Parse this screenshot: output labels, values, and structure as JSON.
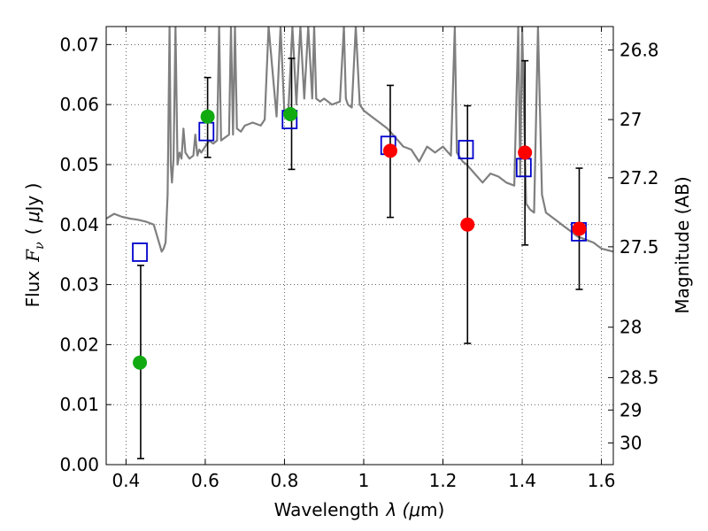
{
  "chart_data": {
    "type": "scatter",
    "xlabel": "Wavelength",
    "xlabel_symbol": "λ (",
    "xlabel_mu": "μ",
    "xlabel_unit": "m)",
    "ylabel": "Flux",
    "ylabel_symbol": "F",
    "ylabel_sub": "ν",
    "ylabel_unit_open": "( ",
    "ylabel_mu": "μ",
    "ylabel_unit": "Jy )",
    "y2label": "Magnitude (AB)",
    "xlim": [
      0.35,
      1.63
    ],
    "ylim": [
      0.0,
      0.073
    ],
    "grid": true,
    "xticks": [
      {
        "value": 0.4,
        "label": "0.4"
      },
      {
        "value": 0.6,
        "label": "0.6"
      },
      {
        "value": 0.8,
        "label": "0.8"
      },
      {
        "value": 1.0,
        "label": "1"
      },
      {
        "value": 1.2,
        "label": "1.2"
      },
      {
        "value": 1.4,
        "label": "1.4"
      },
      {
        "value": 1.6,
        "label": "1.6"
      }
    ],
    "yticks": [
      {
        "value": 0.0,
        "label": "0.00"
      },
      {
        "value": 0.01,
        "label": "0.01"
      },
      {
        "value": 0.02,
        "label": "0.02"
      },
      {
        "value": 0.03,
        "label": "0.03"
      },
      {
        "value": 0.04,
        "label": "0.04"
      },
      {
        "value": 0.05,
        "label": "0.05"
      },
      {
        "value": 0.06,
        "label": "0.06"
      },
      {
        "value": 0.07,
        "label": "0.07"
      }
    ],
    "y2ticks": [
      {
        "flux": 0.0691,
        "label": "26.8"
      },
      {
        "flux": 0.0575,
        "label": "27"
      },
      {
        "flux": 0.0478,
        "label": "27.2"
      },
      {
        "flux": 0.0363,
        "label": "27.5"
      },
      {
        "flux": 0.0229,
        "label": "28"
      },
      {
        "flux": 0.0145,
        "label": "28.5"
      },
      {
        "flux": 0.0091,
        "label": "29"
      },
      {
        "flux": 0.0036,
        "label": "30"
      }
    ],
    "series": [
      {
        "role": "model_spectrum",
        "kind": "line",
        "color": "#7f7f7f",
        "x": [
          0.35,
          0.37,
          0.39,
          0.41,
          0.43,
          0.45,
          0.47,
          0.49,
          0.495,
          0.5,
          0.505,
          0.51,
          0.513,
          0.516,
          0.52,
          0.525,
          0.53,
          0.535,
          0.54,
          0.545,
          0.55,
          0.56,
          0.57,
          0.575,
          0.58,
          0.585,
          0.59,
          0.6,
          0.61,
          0.62,
          0.63,
          0.635,
          0.64,
          0.65,
          0.66,
          0.665,
          0.67,
          0.675,
          0.68,
          0.69,
          0.7,
          0.72,
          0.74,
          0.75,
          0.76,
          0.78,
          0.79,
          0.8,
          0.81,
          0.82,
          0.83,
          0.84,
          0.85,
          0.86,
          0.87,
          0.875,
          0.88,
          0.89,
          0.9,
          0.92,
          0.94,
          0.95,
          0.955,
          0.96,
          0.97,
          0.98,
          0.99,
          1.0,
          1.02,
          1.04,
          1.06,
          1.08,
          1.1,
          1.12,
          1.14,
          1.16,
          1.18,
          1.2,
          1.22,
          1.23,
          1.235,
          1.24,
          1.25,
          1.26,
          1.28,
          1.3,
          1.32,
          1.34,
          1.36,
          1.38,
          1.39,
          1.395,
          1.4,
          1.41,
          1.42,
          1.43,
          1.44,
          1.45,
          1.46,
          1.48,
          1.5,
          1.52,
          1.54,
          1.56,
          1.58,
          1.6,
          1.63
        ],
        "y": [
          0.041,
          0.0418,
          0.0413,
          0.041,
          0.0408,
          0.0405,
          0.04,
          0.0355,
          0.036,
          0.037,
          0.045,
          0.073,
          0.05,
          0.047,
          0.051,
          0.073,
          0.05,
          0.052,
          0.051,
          0.056,
          0.052,
          0.051,
          0.0515,
          0.055,
          0.0515,
          0.0525,
          0.052,
          0.053,
          0.054,
          0.0535,
          0.054,
          0.073,
          0.054,
          0.0545,
          0.055,
          0.073,
          0.055,
          0.073,
          0.056,
          0.0555,
          0.0565,
          0.057,
          0.0565,
          0.0575,
          0.073,
          0.058,
          0.073,
          0.0585,
          0.059,
          0.073,
          0.06,
          0.073,
          0.061,
          0.073,
          0.061,
          0.073,
          0.061,
          0.0605,
          0.061,
          0.06,
          0.0605,
          0.073,
          0.061,
          0.06,
          0.0595,
          0.073,
          0.06,
          0.059,
          0.058,
          0.057,
          0.056,
          0.0545,
          0.053,
          0.0525,
          0.0505,
          0.053,
          0.052,
          0.053,
          0.0515,
          0.073,
          0.052,
          0.0515,
          0.0505,
          0.05,
          0.0485,
          0.047,
          0.0485,
          0.048,
          0.047,
          0.0465,
          0.073,
          0.048,
          0.073,
          0.0435,
          0.0425,
          0.042,
          0.073,
          0.045,
          0.042,
          0.041,
          0.04,
          0.039,
          0.038,
          0.0375,
          0.037,
          0.036,
          0.0355
        ]
      },
      {
        "role": "model_photometry",
        "kind": "open_square",
        "color": "#0000cc",
        "x": [
          0.435,
          0.603,
          0.813,
          1.062,
          1.258,
          1.404,
          1.543
        ],
        "y": [
          0.0354,
          0.0555,
          0.0575,
          0.0532,
          0.0525,
          0.0495,
          0.0388
        ]
      },
      {
        "role": "observed_green",
        "kind": "filled_circle",
        "color": "#11aa11",
        "x": [
          0.435,
          0.606,
          0.815
        ],
        "y": [
          0.017,
          0.058,
          0.0584
        ]
      },
      {
        "role": "observed_red",
        "kind": "filled_circle",
        "color": "#ff0000",
        "x": [
          1.067,
          1.262,
          1.407,
          1.544
        ],
        "y": [
          0.0523,
          0.04,
          0.052,
          0.0393
        ]
      }
    ],
    "errorbars": {
      "color": "#000000",
      "points": [
        {
          "x": 0.437,
          "low": 0.001,
          "high": 0.0332
        },
        {
          "x": 0.606,
          "low": 0.0512,
          "high": 0.0645
        },
        {
          "x": 0.818,
          "low": 0.0492,
          "high": 0.0677
        },
        {
          "x": 1.067,
          "low": 0.0412,
          "high": 0.0632
        },
        {
          "x": 1.262,
          "low": 0.0202,
          "high": 0.0598
        },
        {
          "x": 1.407,
          "low": 0.0366,
          "high": 0.0673
        },
        {
          "x": 1.544,
          "low": 0.0292,
          "high": 0.0494
        }
      ]
    }
  }
}
